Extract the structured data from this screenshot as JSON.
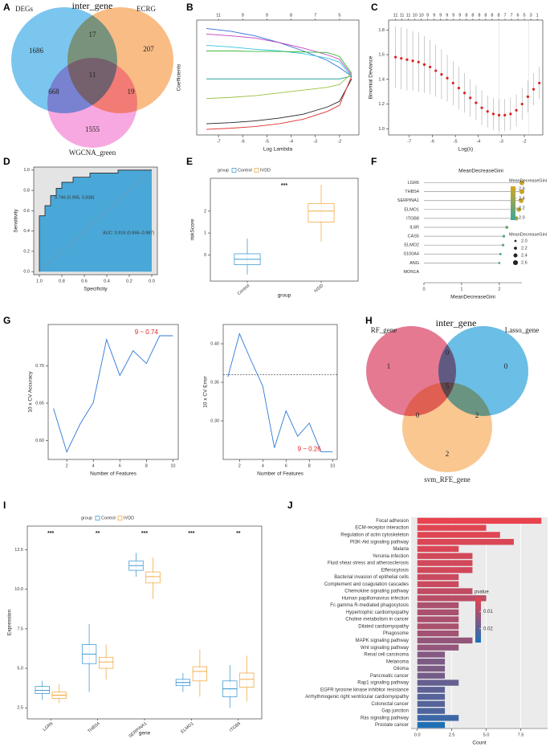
{
  "chart_data": [
    {
      "type": "venn",
      "label": "A",
      "title": "inter_gene",
      "sets": [
        {
          "name": "DEGs",
          "color": "#4fb3e8"
        },
        {
          "name": "ECRG",
          "color": "#f7a65c"
        },
        {
          "name": "WGCNA_green",
          "color": "#f58bd6"
        }
      ],
      "values": [
        1686,
        17,
        207,
        11,
        668,
        19,
        1555
      ]
    },
    {
      "type": "line",
      "label": "B",
      "xlabel": "Log Lambda",
      "ylabel": "Coefficients",
      "xlim": [
        -7.9,
        -1.2
      ],
      "xticks": [
        -7,
        -6,
        -5,
        -4,
        -3,
        -2
      ],
      "ylim": [
        -1.05,
        1.0
      ],
      "top_ticks": [
        {
          "value": -7,
          "label": "11"
        },
        {
          "value": -6,
          "label": "9"
        },
        {
          "value": -5,
          "label": "9"
        },
        {
          "value": -4,
          "label": "8"
        },
        {
          "value": -3,
          "label": "7"
        },
        {
          "value": -2,
          "label": "5"
        }
      ],
      "x": [
        -7.5,
        -6.5,
        -5.5,
        -4.5,
        -3.5,
        -2.5,
        -2,
        -1.5
      ],
      "series": [
        {
          "color": "#2f6fd6",
          "values": [
            0.85,
            0.8,
            0.72,
            0.6,
            0.45,
            0.28,
            0.15,
            0
          ]
        },
        {
          "color": "#c03ec0",
          "values": [
            0.75,
            0.72,
            0.68,
            0.6,
            0.5,
            0.38,
            0.3,
            0.02
          ]
        },
        {
          "color": "#33c6e0",
          "values": [
            0.55,
            0.52,
            0.48,
            0.45,
            0.4,
            0.32,
            0.25,
            0
          ]
        },
        {
          "color": "#38b838",
          "values": [
            0.45,
            0.45,
            0.44,
            0.44,
            0.43,
            0.42,
            0.35,
            0.05
          ]
        },
        {
          "color": "#2aa0a0",
          "values": [
            -0.05,
            -0.05,
            -0.05,
            -0.05,
            -0.05,
            -0.05,
            -0.05,
            0
          ]
        },
        {
          "color": "#9ac040",
          "values": [
            -0.4,
            -0.38,
            -0.35,
            -0.3,
            -0.25,
            -0.2,
            -0.15,
            0.05
          ]
        },
        {
          "color": "#222222",
          "values": [
            -0.85,
            -0.83,
            -0.8,
            -0.75,
            -0.68,
            -0.55,
            -0.45,
            -0.05
          ]
        },
        {
          "color": "#e03030",
          "values": [
            -0.95,
            -0.93,
            -0.9,
            -0.85,
            -0.77,
            -0.63,
            -0.52,
            0
          ]
        }
      ]
    },
    {
      "type": "errorbar",
      "label": "C",
      "xlabel": "Log(λ)",
      "ylabel": "Binomial Deviance",
      "xlim": [
        -7.9,
        -1.2
      ],
      "xticks": [
        -7,
        -6,
        -5,
        -4,
        -3,
        -2
      ],
      "ylim": [
        0.95,
        1.88
      ],
      "yticks": [
        {
          "value": 1,
          "label": "1.0"
        },
        1.2,
        1.4,
        1.6,
        1.8
      ],
      "vlines": [
        -3.1,
        -1.8
      ],
      "top_ticks": [
        {
          "value": -7.6,
          "label": "11"
        },
        {
          "value": -7.32,
          "label": "11"
        },
        {
          "value": -7.04,
          "label": "11"
        },
        {
          "value": -6.76,
          "label": "10"
        },
        {
          "value": -6.48,
          "label": "10"
        },
        {
          "value": -6.2,
          "label": "9"
        },
        {
          "value": -5.92,
          "label": "9"
        },
        {
          "value": -5.64,
          "label": "9"
        },
        {
          "value": -5.36,
          "label": "9"
        },
        {
          "value": -5.08,
          "label": "9"
        },
        {
          "value": -4.8,
          "label": "9"
        },
        {
          "value": -4.52,
          "label": "8"
        },
        {
          "value": -4.24,
          "label": "8"
        },
        {
          "value": -3.96,
          "label": "8"
        },
        {
          "value": -3.68,
          "label": "8"
        },
        {
          "value": -3.4,
          "label": "8"
        },
        {
          "value": -3.12,
          "label": "8"
        },
        {
          "value": -2.84,
          "label": "7"
        },
        {
          "value": -2.56,
          "label": "7"
        },
        {
          "value": -2.28,
          "label": "6"
        },
        {
          "value": -2.0,
          "label": "5"
        },
        {
          "value": -1.72,
          "label": "3"
        },
        {
          "value": -1.44,
          "label": "1"
        }
      ],
      "x": [
        -7.6,
        -7.35,
        -7.1,
        -6.85,
        -6.6,
        -6.35,
        -6.1,
        -5.85,
        -5.6,
        -5.35,
        -5.1,
        -4.85,
        -4.6,
        -4.35,
        -4.1,
        -3.85,
        -3.6,
        -3.35,
        -3.1,
        -2.85,
        -2.6,
        -2.35,
        -2.1,
        -1.85,
        -1.6,
        -1.35
      ],
      "values": [
        1.58,
        1.57,
        1.56,
        1.55,
        1.54,
        1.52,
        1.5,
        1.47,
        1.44,
        1.41,
        1.37,
        1.33,
        1.29,
        1.25,
        1.21,
        1.17,
        1.14,
        1.12,
        1.11,
        1.11,
        1.12,
        1.15,
        1.2,
        1.26,
        1.32,
        1.37
      ],
      "errors": [
        0.25,
        0.25,
        0.25,
        0.24,
        0.24,
        0.23,
        0.22,
        0.21,
        0.2,
        0.19,
        0.18,
        0.17,
        0.16,
        0.15,
        0.14,
        0.14,
        0.13,
        0.13,
        0.13,
        0.13,
        0.13,
        0.13,
        0.13,
        0.13,
        0.13,
        0.13
      ],
      "color": "#e02020"
    },
    {
      "type": "roc",
      "label": "D",
      "xlabel": "Specificity",
      "ylabel": "Sensitivity",
      "xlim": [
        1.05,
        -0.05
      ],
      "xticks": [
        {
          "value": 1,
          "label": "1.0"
        },
        0.8,
        0.6,
        0.4,
        0.2,
        {
          "value": 0,
          "label": "0.0"
        }
      ],
      "ylim": [
        -0.03,
        1.03
      ],
      "yticks": [
        {
          "value": 0,
          "label": "0.0"
        },
        0.2,
        0.4,
        0.6,
        0.8,
        {
          "value": 1,
          "label": "1.0"
        }
      ],
      "x": [
        1,
        1,
        0.95,
        0.95,
        0.9,
        0.9,
        0.85,
        0.85,
        0.8,
        0.8,
        0.7,
        0.7,
        0.55,
        0.55,
        0.3,
        0.3,
        0
      ],
      "values": [
        0,
        0.55,
        0.55,
        0.65,
        0.65,
        0.75,
        0.75,
        0.82,
        0.82,
        0.88,
        0.88,
        0.93,
        0.93,
        0.97,
        0.97,
        1,
        1
      ],
      "color": "#4aa8d8",
      "annotations": [
        "0.746 (0.905, 0.838)",
        "AUC: 0.916 (0.846–0.987)"
      ]
    },
    {
      "type": "box",
      "label": "E",
      "legend_title": "group",
      "categories": [
        "Control",
        "IVDD"
      ],
      "xlabel": "group",
      "ylabel": "riskScore",
      "ylim": [
        -1.2,
        3.5
      ],
      "yticks": [
        0,
        1,
        2
      ],
      "significance": [
        "***"
      ],
      "dodge": false,
      "series": [
        {
          "name": "Control",
          "color": "#2b8fd0",
          "stats": [
            [
              -0.9,
              -0.45,
              -0.2,
              0.05,
              0.75
            ],
            null
          ]
        },
        {
          "name": "IVDD",
          "color": "#f0a030",
          "stats": [
            null,
            [
              0.6,
              1.5,
              2.0,
              2.35,
              3.2
            ]
          ]
        }
      ]
    },
    {
      "type": "lollipop",
      "label": "F",
      "title": "MeanDecreaseGini",
      "xlabel": "MeanDecreaseGini",
      "categories": [
        "LGR6",
        "THBS4",
        "SERPINA1",
        "ELMO1",
        "ITGB8",
        "IL6R",
        "CAS5",
        "ELMO2",
        "S100A4",
        "ANG",
        "MON1A"
      ],
      "values": [
        2.6,
        2.6,
        2.58,
        2.52,
        2.45,
        2.2,
        2.12,
        2.1,
        2.03,
        2.0,
        null
      ],
      "xlim": [
        0,
        2.6
      ],
      "xticks": [
        0,
        1,
        2
      ],
      "legend_title": "MeanDecreaseGini",
      "legend_ticks": [
        2.6,
        2.4,
        2.2,
        {
          "value": 2,
          "label": "2.0"
        }
      ],
      "clim": [
        1.95,
        2.65
      ],
      "colors": [
        "#3aa89a",
        "#d4a520"
      ]
    },
    {
      "type": "line",
      "label": "G",
      "xlabel": "Number of Features",
      "ylabel": "10 x CV Accuracy",
      "x": [
        1,
        2,
        3,
        4,
        5,
        6,
        7,
        8,
        9,
        10
      ],
      "xlim": [
        0.6,
        10.4
      ],
      "xticks": [
        2,
        4,
        6,
        8,
        10
      ],
      "ylim": [
        0.575,
        0.755
      ],
      "yticks": [
        {
          "value": 0.6,
          "label": "0.60"
        },
        {
          "value": 0.65,
          "label": "0.65"
        },
        {
          "value": 0.7,
          "label": "0.70"
        }
      ],
      "series": [
        {
          "color": "#2e78d6",
          "values": [
            0.643,
            0.585,
            0.622,
            0.651,
            0.735,
            0.687,
            0.72,
            0.703,
            0.74,
            0.74
          ]
        }
      ],
      "annotations": [
        "9 ~ 0.74"
      ]
    },
    {
      "type": "line",
      "xlabel": "Number of Features",
      "ylabel": "10 x CV Error",
      "x": [
        1,
        2,
        3,
        4,
        5,
        6,
        7,
        8,
        9,
        10
      ],
      "xlim": [
        0.6,
        10.4
      ],
      "xticks": [
        2,
        4,
        6,
        8,
        10
      ],
      "ylim": [
        0.25,
        0.425
      ],
      "yticks": [
        {
          "value": 0.3,
          "label": "0.30"
        },
        {
          "value": 0.35,
          "label": "0.35"
        },
        {
          "value": 0.4,
          "label": "0.40"
        }
      ],
      "hline": 0.36,
      "series": [
        {
          "color": "#2e78d6",
          "values": [
            0.357,
            0.413,
            0.378,
            0.345,
            0.265,
            0.313,
            0.28,
            0.297,
            0.26,
            0.26
          ]
        }
      ],
      "annotations": [
        "9 ~ 0.26"
      ]
    },
    {
      "type": "venn",
      "label": "H",
      "title": "inter_gene",
      "sets": [
        {
          "name": "RF_gene",
          "color": "#dc4c6e"
        },
        {
          "name": "Lasso_gene",
          "color": "#3aa8dc"
        },
        {
          "name": "svm_RFE_gene",
          "color": "#f8b46c"
        }
      ],
      "values": [
        1,
        0,
        0,
        5,
        0,
        2,
        2
      ]
    },
    {
      "type": "box",
      "label": "I",
      "legend_title": "group",
      "categories": [
        "LGR6",
        "THBS4",
        "SERPINA1",
        "ELMO1",
        "ITGB8"
      ],
      "xlabel": "gene",
      "ylabel": "Expression",
      "ylim": [
        1.8,
        14
      ],
      "yticks": [
        2.5,
        {
          "value": 5,
          "label": "5.0"
        },
        7.5,
        {
          "value": 10,
          "label": "10.0"
        },
        12.5
      ],
      "significance": [
        "***",
        "**",
        "***",
        "***",
        "**"
      ],
      "dodge": true,
      "series": [
        {
          "name": "Control",
          "color": "#2b8fd0",
          "stats": [
            [
              3.0,
              3.4,
              3.6,
              3.85,
              4.2
            ],
            [
              3.5,
              5.3,
              5.9,
              6.5,
              7.8
            ],
            [
              10.8,
              11.2,
              11.5,
              11.8,
              12.3
            ],
            [
              3.5,
              3.9,
              4.1,
              4.3,
              4.7
            ],
            [
              2.5,
              3.2,
              3.7,
              4.2,
              5.2
            ]
          ]
        },
        {
          "name": "IVDD",
          "color": "#f0a030",
          "stats": [
            [
              2.8,
              3.1,
              3.3,
              3.5,
              4.0
            ],
            [
              4.3,
              5.0,
              5.4,
              5.7,
              6.5
            ],
            [
              9.4,
              10.4,
              10.8,
              11.1,
              12.0
            ],
            [
              3.2,
              4.2,
              4.8,
              5.1,
              6.2
            ],
            [
              2.9,
              3.8,
              4.3,
              4.7,
              5.8
            ]
          ]
        }
      ]
    },
    {
      "type": "hbar",
      "label": "J",
      "xlabel": "Count",
      "legend_title": "pvalue",
      "categories": [
        "Focal adhesion",
        "ECM-receptor interaction",
        "Regulation of actin cytoskeleton",
        "PI3K-Akt signaling pathway",
        "Malaria",
        "Yersinia infection",
        "Fluid shear stress and atherosclerosis",
        "Efferocytosis",
        "Bacterial invasion of epithelial cells",
        "Complement and coagulation cascades",
        "Chemokine signaling pathway",
        "Human papillomavirus infection",
        "Fc gamma R-mediated phagocytosis",
        "Hypertrophic cardiomyopathy",
        "Choline metabolism in cancer",
        "Dilated cardiomyopathy",
        "Phagosome",
        "MAPK signaling pathway",
        "Wnt signaling pathway",
        "Renal cell carcinoma",
        "Melanoma",
        "Glioma",
        "Pancreatic cancer",
        "Rap1 signaling pathway",
        "EGFR tyrosine kinase inhibitor resistance",
        "Arrhythmogenic right ventricular cardiomyopathy",
        "Colorectal cancer",
        "Gap junction",
        "Ras signaling pathway",
        "Prostate cancer"
      ],
      "values": [
        9,
        5,
        6,
        7,
        3,
        4,
        4,
        4,
        3,
        3,
        4,
        5,
        3,
        3,
        3,
        3,
        3,
        4,
        3,
        2,
        2,
        2,
        2,
        3,
        2,
        2,
        2,
        2,
        3,
        2
      ],
      "pvalues": [
        0.002,
        0.003,
        0.003,
        0.004,
        0.004,
        0.005,
        0.005,
        0.005,
        0.006,
        0.006,
        0.007,
        0.008,
        0.01,
        0.01,
        0.01,
        0.01,
        0.011,
        0.013,
        0.013,
        0.015,
        0.016,
        0.016,
        0.017,
        0.019,
        0.02,
        0.021,
        0.021,
        0.022,
        0.024,
        0.028
      ],
      "xlim": [
        -0.45,
        9.45
      ],
      "xticks": [
        {
          "value": 0,
          "label": "0.0"
        },
        2.5,
        {
          "value": 5,
          "label": "5.0"
        },
        7.5
      ],
      "clim": [
        0.002,
        0.028
      ],
      "legend_ticks": [
        0.01,
        0.02
      ],
      "colors": [
        "#e8434e",
        "#1f6fb5"
      ]
    }
  ]
}
